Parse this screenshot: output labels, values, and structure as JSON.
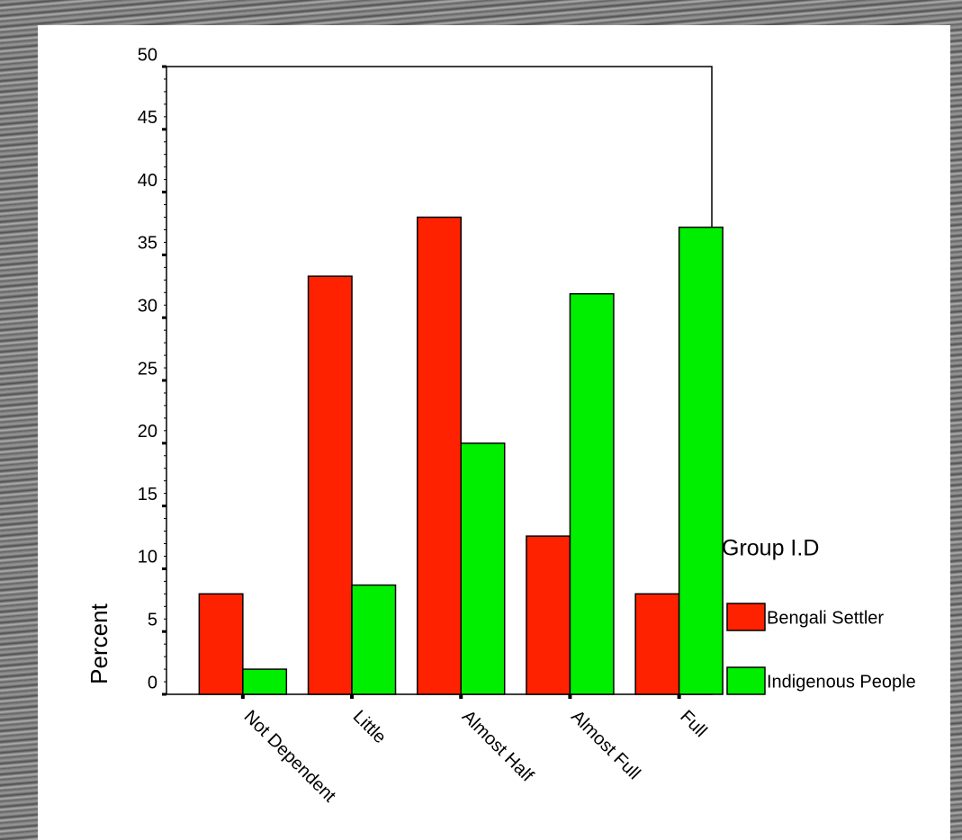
{
  "chart_data": {
    "type": "bar",
    "y_label": "Percent",
    "categories": [
      "Not Dependent",
      "Little",
      "Almost Half",
      "Almost Full",
      "Full"
    ],
    "series": [
      {
        "name": "Bengali Settler",
        "color": "#ff2200",
        "values": [
          8.0,
          33.3,
          38.0,
          12.6,
          8.0
        ]
      },
      {
        "name": "Indigenous People",
        "color": "#00ee00",
        "values": [
          2.0,
          8.7,
          20.0,
          31.9,
          37.2
        ]
      }
    ],
    "legend_title": "Group I.D",
    "legend": "right",
    "ylim": [
      0,
      50
    ],
    "yticks": [
      0,
      5,
      10,
      15,
      20,
      25,
      30,
      35,
      40,
      45,
      50
    ]
  }
}
